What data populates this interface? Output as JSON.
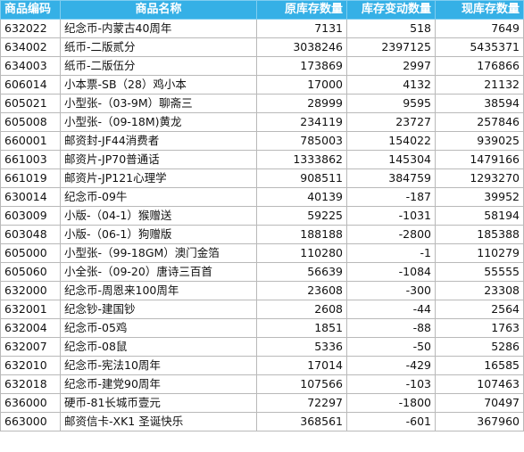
{
  "table": {
    "headers": [
      "商品编码",
      "商品名称",
      "原库存数量",
      "库存变动数量",
      "现库存数量"
    ],
    "rows": [
      [
        "632022",
        "纪念币-内蒙古40周年",
        "7131",
        "518",
        "7649"
      ],
      [
        "634002",
        "纸币-二版贰分",
        "3038246",
        "2397125",
        "5435371"
      ],
      [
        "634003",
        "纸币-二版伍分",
        "173869",
        "2997",
        "176866"
      ],
      [
        "606014",
        "小本票-SB（28）鸡小本",
        "17000",
        "4132",
        "21132"
      ],
      [
        "605021",
        "小型张-（03-9M）聊斋三",
        "28999",
        "9595",
        "38594"
      ],
      [
        "605008",
        "小型张-（09-18M)黄龙",
        "234119",
        "23727",
        "257846"
      ],
      [
        "660001",
        "邮资封-JF44消费者",
        "785003",
        "154022",
        "939025"
      ],
      [
        "661003",
        "邮资片-JP70普通话",
        "1333862",
        "145304",
        "1479166"
      ],
      [
        "661019",
        "邮资片-JP121心理学",
        "908511",
        "384759",
        "1293270"
      ],
      [
        "630014",
        "纪念币-09牛",
        "40139",
        "-187",
        "39952"
      ],
      [
        "603009",
        "小版-（04-1）猴赠送",
        "59225",
        "-1031",
        "58194"
      ],
      [
        "603048",
        "小版-（06-1）狗赠版",
        "188188",
        "-2800",
        "185388"
      ],
      [
        "605000",
        "小型张-（99-18GM）澳门金箔",
        "110280",
        "-1",
        "110279"
      ],
      [
        "605060",
        "小全张-（09-20）唐诗三百首",
        "56639",
        "-1084",
        "55555"
      ],
      [
        "632000",
        "纪念币-周恩来100周年",
        "23608",
        "-300",
        "23308"
      ],
      [
        "632001",
        "纪念钞-建国钞",
        "2608",
        "-44",
        "2564"
      ],
      [
        "632004",
        "纪念币-05鸡",
        "1851",
        "-88",
        "1763"
      ],
      [
        "632007",
        "纪念币-08鼠",
        "5336",
        "-50",
        "5286"
      ],
      [
        "632010",
        "纪念币-宪法10周年",
        "17014",
        "-429",
        "16585"
      ],
      [
        "632018",
        "纪念币-建党90周年",
        "107566",
        "-103",
        "107463"
      ],
      [
        "636000",
        "硬币-81长城币壹元",
        "72297",
        "-1800",
        "70497"
      ],
      [
        "663000",
        "邮资信卡-XK1 圣诞快乐",
        "368561",
        "-601",
        "367960"
      ]
    ]
  },
  "colors": {
    "header_bg": "#35b0e6",
    "header_text": "#ffffff",
    "grid_line": "#b9b9b9"
  }
}
